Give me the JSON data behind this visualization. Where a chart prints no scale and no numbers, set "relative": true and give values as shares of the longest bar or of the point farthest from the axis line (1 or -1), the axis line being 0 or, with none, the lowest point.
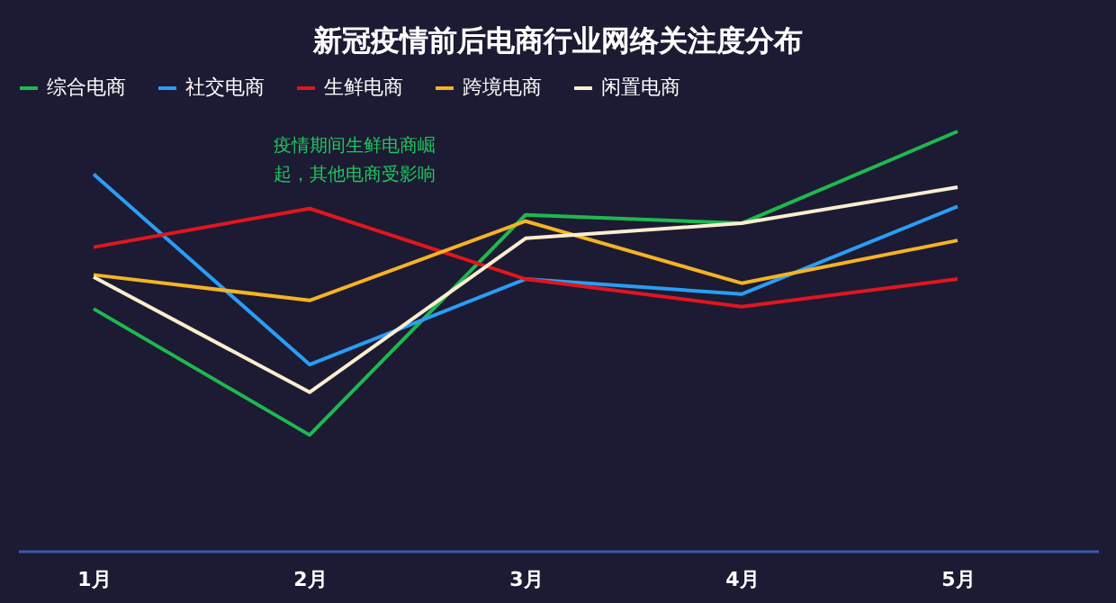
{
  "chart_data": {
    "type": "line",
    "title": "新冠疫情前后电商行业网络关注度分布",
    "relative": true,
    "legend": "top",
    "grid": false,
    "marker": "none",
    "line_style": "solid",
    "categories": [
      "1月",
      "2月",
      "3月",
      "4月",
      "5月"
    ],
    "series": [
      {
        "name": "综合电商",
        "color": "#1fb84f",
        "values": [
          0.577,
          0.276,
          0.801,
          0.781,
          1
        ]
      },
      {
        "name": "社交电商",
        "color": "#2a9df4",
        "values": [
          0.898,
          0.444,
          0.648,
          0.612,
          0.821
        ]
      },
      {
        "name": "生鲜电商",
        "color": "#e0161e",
        "values": [
          0.724,
          0.816,
          0.648,
          0.582,
          0.648
        ]
      },
      {
        "name": "跨境电商",
        "color": "#f5b324",
        "values": [
          0.658,
          0.597,
          0.786,
          0.638,
          0.74
        ]
      },
      {
        "name": "闲置电商",
        "color": "#fbeed0",
        "values": [
          0.653,
          0.378,
          0.745,
          0.781,
          0.867
        ]
      }
    ],
    "annotations": [
      {
        "text": "疫情期间生鲜电商崛起，其他电商受影响",
        "x": "2月",
        "y": 0.816
      }
    ]
  }
}
